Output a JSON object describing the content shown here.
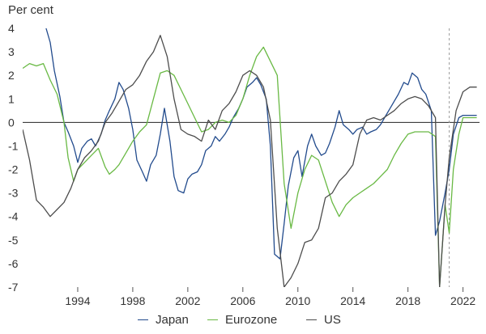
{
  "chart_data": {
    "type": "line",
    "title": "",
    "ylabel": "Per cent",
    "xlabel": "",
    "ylim": [
      -7,
      4
    ],
    "xlim": [
      1990.0,
      2023.2
    ],
    "yticks": [
      "4",
      "3",
      "2",
      "1",
      "0",
      "-1",
      "-2",
      "-3",
      "-4",
      "-5",
      "-6",
      "-7"
    ],
    "xticks": [
      "1994",
      "1998",
      "2002",
      "2006",
      "2010",
      "2014",
      "2018",
      "2022"
    ],
    "grid": false,
    "zero_line": true,
    "marker_line": {
      "x": 2021.0,
      "style": "dashed"
    },
    "legend": {
      "placement": "bottom"
    },
    "series": [
      {
        "name": "Japan",
        "color": "#224b8d",
        "x": [
          1991.7,
          1992.0,
          1992.3,
          1992.7,
          1993.0,
          1993.3,
          1993.7,
          1994.0,
          1994.3,
          1994.7,
          1995.0,
          1995.3,
          1995.7,
          1996.0,
          1996.3,
          1996.7,
          1997.0,
          1997.3,
          1997.7,
          1998.0,
          1998.3,
          1998.7,
          1999.0,
          1999.3,
          1999.7,
          2000.0,
          2000.3,
          2000.7,
          2001.0,
          2001.3,
          2001.7,
          2002.0,
          2002.3,
          2002.7,
          2003.0,
          2003.3,
          2003.7,
          2004.0,
          2004.3,
          2004.7,
          2005.0,
          2005.3,
          2005.7,
          2006.0,
          2006.3,
          2006.7,
          2007.0,
          2007.3,
          2007.7,
          2008.0,
          2008.3,
          2008.7,
          2009.0,
          2009.3,
          2009.7,
          2010.0,
          2010.3,
          2010.7,
          2011.0,
          2011.3,
          2011.7,
          2012.0,
          2012.3,
          2012.7,
          2013.0,
          2013.3,
          2013.7,
          2014.0,
          2014.3,
          2014.7,
          2015.0,
          2015.3,
          2015.7,
          2016.0,
          2016.3,
          2016.7,
          2017.0,
          2017.3,
          2017.7,
          2018.0,
          2018.3,
          2018.7,
          2019.0,
          2019.3,
          2019.7,
          2020.0,
          2020.3,
          2020.7,
          2021.0,
          2021.3,
          2021.7,
          2022.0,
          2022.3,
          2022.7,
          2023.0
        ],
        "values": [
          4.0,
          3.4,
          2.2,
          1.1,
          0.0,
          -0.4,
          -1.0,
          -1.7,
          -1.1,
          -0.8,
          -0.7,
          -1.0,
          -0.5,
          0.1,
          0.5,
          1.0,
          1.7,
          1.4,
          0.6,
          -0.3,
          -1.6,
          -2.1,
          -2.5,
          -1.8,
          -1.4,
          -0.5,
          0.6,
          -0.8,
          -2.3,
          -2.9,
          -3.0,
          -2.4,
          -2.2,
          -2.1,
          -1.8,
          -1.2,
          -1.0,
          -0.6,
          -0.8,
          -0.5,
          -0.2,
          0.2,
          0.6,
          1.0,
          1.5,
          1.7,
          1.9,
          1.6,
          1.0,
          -1.0,
          -5.6,
          -5.8,
          -4.3,
          -2.7,
          -1.5,
          -1.2,
          -2.3,
          -1.0,
          -0.5,
          -1.0,
          -1.4,
          -1.3,
          -0.9,
          -0.2,
          0.5,
          -0.1,
          -0.3,
          -0.5,
          -0.3,
          -0.2,
          -0.5,
          -0.4,
          -0.3,
          -0.1,
          0.2,
          0.6,
          0.9,
          1.2,
          1.7,
          1.6,
          2.1,
          1.9,
          1.4,
          1.2,
          0.5,
          -4.8,
          -4.2,
          -3.0,
          -2.0,
          -0.5,
          0.2,
          0.3,
          0.3,
          0.3,
          0.3
        ]
      },
      {
        "name": "Eurozone",
        "color": "#69b944",
        "x": [
          1990.0,
          1990.5,
          1991.0,
          1991.5,
          1992.0,
          1992.5,
          1993.0,
          1993.3,
          1993.7,
          1994.0,
          1994.5,
          1995.0,
          1995.5,
          1996.0,
          1996.3,
          1996.7,
          1997.0,
          1997.5,
          1998.0,
          1998.5,
          1999.0,
          1999.5,
          2000.0,
          2000.5,
          2001.0,
          2001.5,
          2002.0,
          2002.5,
          2003.0,
          2003.5,
          2004.0,
          2004.5,
          2005.0,
          2005.5,
          2006.0,
          2006.5,
          2007.0,
          2007.5,
          2008.0,
          2008.5,
          2009.0,
          2009.5,
          2010.0,
          2010.5,
          2011.0,
          2011.5,
          2012.0,
          2012.5,
          2013.0,
          2013.5,
          2014.0,
          2014.5,
          2015.0,
          2015.5,
          2016.0,
          2016.5,
          2017.0,
          2017.5,
          2018.0,
          2018.5,
          2019.0,
          2019.5,
          2020.0,
          2020.3,
          2020.7,
          2021.0,
          2021.3,
          2021.7,
          2022.0,
          2022.3,
          2023.0
        ],
        "values": [
          2.3,
          2.5,
          2.4,
          2.5,
          1.8,
          1.2,
          0.0,
          -1.5,
          -2.5,
          -2.0,
          -1.7,
          -1.4,
          -1.1,
          -1.9,
          -2.2,
          -2.0,
          -1.8,
          -1.3,
          -0.8,
          -0.4,
          -0.1,
          1.0,
          2.1,
          2.2,
          2.0,
          1.4,
          0.8,
          0.2,
          -0.4,
          -0.3,
          0.0,
          0.1,
          0.0,
          0.3,
          1.0,
          2.0,
          2.8,
          3.2,
          2.6,
          2.0,
          -2.6,
          -4.5,
          -3.0,
          -2.0,
          -1.4,
          -1.6,
          -2.5,
          -3.4,
          -4.0,
          -3.5,
          -3.2,
          -3.0,
          -2.8,
          -2.6,
          -2.3,
          -2.0,
          -1.4,
          -0.9,
          -0.5,
          -0.4,
          -0.4,
          -0.4,
          -0.6,
          -7.0,
          -3.5,
          -4.7,
          -2.0,
          -0.5,
          0.2,
          0.2,
          0.2
        ]
      },
      {
        "name": "US",
        "color": "#4d4d4d",
        "x": [
          1990.0,
          1990.5,
          1991.0,
          1991.5,
          1992.0,
          1992.5,
          1993.0,
          1993.5,
          1994.0,
          1994.5,
          1995.0,
          1995.5,
          1996.0,
          1996.5,
          1997.0,
          1997.5,
          1998.0,
          1998.5,
          1999.0,
          1999.5,
          2000.0,
          2000.5,
          2001.0,
          2001.5,
          2002.0,
          2002.5,
          2003.0,
          2003.5,
          2004.0,
          2004.5,
          2005.0,
          2005.5,
          2006.0,
          2006.5,
          2007.0,
          2007.5,
          2008.0,
          2008.5,
          2009.0,
          2009.5,
          2010.0,
          2010.5,
          2011.0,
          2011.5,
          2012.0,
          2012.5,
          2013.0,
          2013.5,
          2014.0,
          2014.5,
          2015.0,
          2015.5,
          2016.0,
          2016.5,
          2017.0,
          2017.5,
          2018.0,
          2018.5,
          2019.0,
          2019.5,
          2020.0,
          2020.3,
          2020.7,
          2021.0,
          2021.5,
          2022.0,
          2022.5,
          2023.0
        ],
        "values": [
          -0.3,
          -1.6,
          -3.3,
          -3.6,
          -4.0,
          -3.7,
          -3.4,
          -2.8,
          -2.0,
          -1.5,
          -1.2,
          -0.8,
          0.0,
          0.4,
          0.9,
          1.4,
          1.6,
          2.0,
          2.6,
          3.0,
          3.7,
          2.8,
          1.0,
          -0.3,
          -0.5,
          -0.6,
          -0.8,
          0.1,
          -0.3,
          0.5,
          0.8,
          1.3,
          2.0,
          2.2,
          2.0,
          1.5,
          0.1,
          -4.5,
          -7.0,
          -6.6,
          -6.0,
          -5.1,
          -5.0,
          -4.5,
          -3.2,
          -3.0,
          -2.5,
          -2.2,
          -1.8,
          -0.5,
          0.1,
          0.2,
          0.1,
          0.3,
          0.5,
          0.8,
          1.0,
          1.1,
          1.0,
          0.7,
          0.2,
          -7.0,
          -3.5,
          -1.5,
          0.5,
          1.3,
          1.5,
          1.5
        ]
      }
    ]
  },
  "legend_items": [
    {
      "label": "Japan",
      "color": "#224b8d"
    },
    {
      "label": "Eurozone",
      "color": "#69b944"
    },
    {
      "label": "US",
      "color": "#4d4d4d"
    }
  ],
  "colors": {
    "axis_text": "#333333",
    "zero_line": "#222222",
    "marker_line": "#999999"
  }
}
